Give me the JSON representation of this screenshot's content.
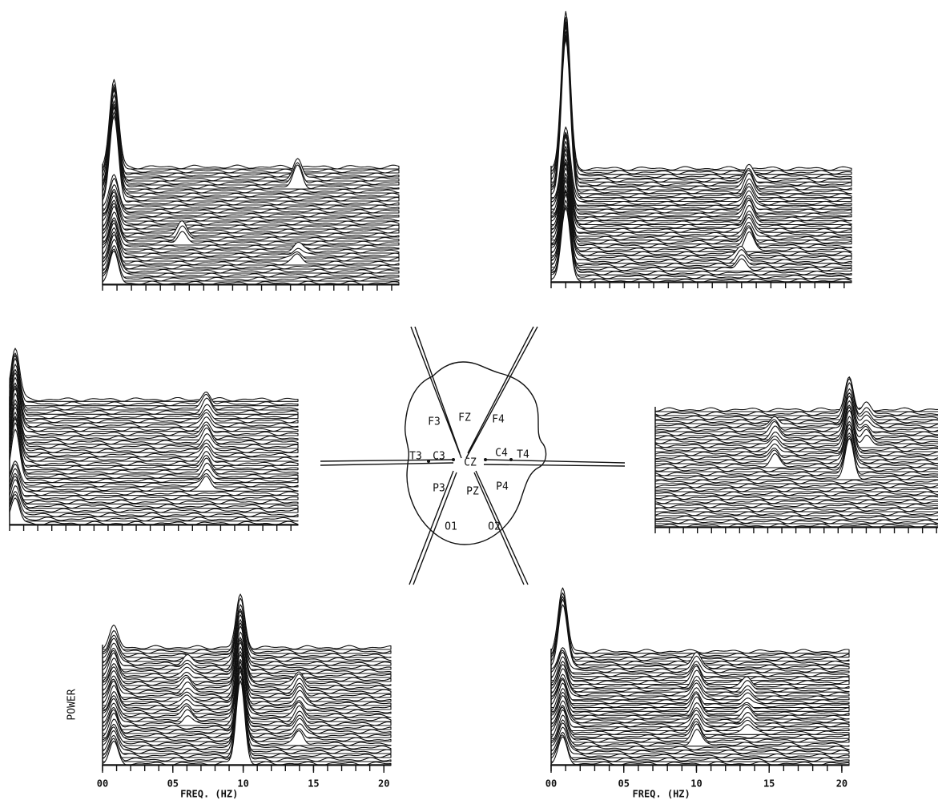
{
  "chart_data": [
    {
      "type": "waterfall",
      "xlim": [
        0,
        20.5
      ],
      "ylim": [
        0,
        100
      ],
      "rows": 30,
      "peaks": [
        {
          "x": 0.8,
          "power": 42,
          "rows": [
            20,
            29
          ]
        },
        {
          "x": 0.8,
          "power": 15,
          "rows": [
            0,
            19
          ]
        },
        {
          "x": 13.5,
          "power": 10,
          "rows": [
            24,
            26
          ]
        },
        {
          "x": 5.5,
          "power": 6,
          "rows": [
            10,
            12
          ]
        },
        {
          "x": 13.5,
          "power": 4,
          "rows": [
            5,
            8
          ]
        }
      ]
    },
    {
      "type": "waterfall",
      "xlim": [
        0,
        20.5
      ],
      "ylim": [
        0,
        100
      ],
      "rows": 30,
      "peaks": [
        {
          "x": 1,
          "power": 75,
          "rows": [
            22,
            29
          ]
        },
        {
          "x": 1,
          "power": 35,
          "rows": [
            0,
            21
          ]
        },
        {
          "x": 13.5,
          "power": 8,
          "rows": [
            8,
            26
          ]
        },
        {
          "x": 13,
          "power": 5,
          "rows": [
            3,
            6
          ]
        }
      ]
    },
    {
      "type": "waterfall",
      "xlim": [
        0,
        20.5
      ],
      "ylim": [
        0,
        100
      ],
      "rows": 30,
      "peaks": [
        {
          "x": 0.4,
          "power": 25,
          "rows": [
            10,
            29
          ]
        },
        {
          "x": 0.4,
          "power": 12,
          "rows": [
            0,
            9
          ]
        },
        {
          "x": 14,
          "power": 6,
          "rows": [
            8,
            28
          ]
        }
      ]
    },
    {
      "type": "waterfall",
      "xlim": [
        0,
        20.5
      ],
      "ylim": [
        0,
        100
      ],
      "rows": 30,
      "peaks": [
        {
          "x": 13.8,
          "power": 18,
          "rows": [
            12,
            28
          ]
        },
        {
          "x": 8.5,
          "power": 5,
          "rows": [
            15,
            25
          ]
        },
        {
          "x": 15,
          "power": 5,
          "rows": [
            20,
            28
          ]
        }
      ]
    },
    {
      "type": "waterfall",
      "xlim": [
        0,
        20.5
      ],
      "ylim": [
        0,
        100
      ],
      "rows": 30,
      "y_label": "POWER",
      "x_label": "FREQ. (HZ)",
      "xticks": [
        {
          "value": 0,
          "label": "00"
        },
        {
          "value": 5,
          "label": "05"
        },
        10,
        15,
        20
      ],
      "peaks": [
        {
          "x": 9.8,
          "power": 40,
          "rows": [
            0,
            5
          ]
        },
        {
          "x": 9.8,
          "power": 25,
          "rows": [
            6,
            29
          ]
        },
        {
          "x": 0.8,
          "power": 10,
          "rows": [
            0,
            29
          ]
        },
        {
          "x": 14,
          "power": 6,
          "rows": [
            5,
            20
          ]
        },
        {
          "x": 6,
          "power": 4,
          "rows": [
            10,
            25
          ]
        }
      ]
    },
    {
      "type": "waterfall",
      "xlim": [
        0,
        20.5
      ],
      "ylim": [
        0,
        100
      ],
      "rows": 30,
      "x_label": "FREQ. (HZ)",
      "xticks": [
        {
          "value": 0,
          "label": "00"
        },
        {
          "value": 5,
          "label": "05"
        },
        10,
        15,
        20
      ],
      "peaks": [
        {
          "x": 0.8,
          "power": 30,
          "rows": [
            25,
            29
          ]
        },
        {
          "x": 0.8,
          "power": 12,
          "rows": [
            0,
            24
          ]
        },
        {
          "x": 10,
          "power": 7,
          "rows": [
            5,
            25
          ]
        },
        {
          "x": 13.5,
          "power": 4,
          "rows": [
            8,
            20
          ]
        }
      ]
    }
  ],
  "head": {
    "electrodes": [
      "F3",
      "FZ",
      "F4",
      "T3",
      "C3",
      "CZ",
      "C4",
      "T4",
      "P3",
      "PZ",
      "P4",
      "O1",
      "O2"
    ]
  }
}
